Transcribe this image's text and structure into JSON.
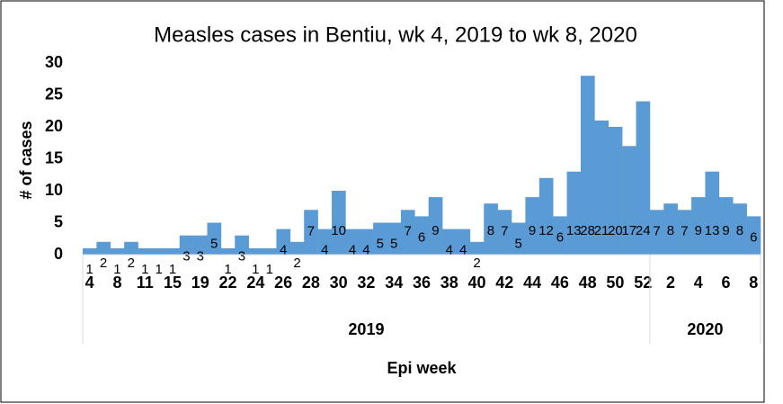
{
  "chart_data": {
    "type": "bar",
    "title": "Measles cases in Bentiu, wk 4, 2019 to wk 8, 2020",
    "x_label": "Epi week",
    "y_label": "# of cases",
    "categories": [
      "4",
      null,
      "8",
      null,
      "11",
      null,
      "15",
      null,
      "19",
      null,
      "22",
      null,
      "24",
      null,
      "26",
      null,
      "28",
      null,
      "30",
      null,
      "32",
      null,
      "34",
      null,
      "36",
      null,
      "38",
      null,
      "40",
      null,
      "42",
      null,
      "44",
      null,
      "46",
      null,
      "48",
      null,
      "50",
      null,
      "52",
      null,
      "2",
      null,
      "4",
      null,
      "6",
      null,
      "8"
    ],
    "groups": [
      {
        "label": "2019",
        "count": 41
      },
      {
        "label": "2020",
        "count": 8
      }
    ],
    "values": [
      1,
      2,
      1,
      2,
      1,
      1,
      1,
      3,
      3,
      5,
      1,
      3,
      1,
      1,
      4,
      2,
      7,
      4,
      10,
      4,
      4,
      5,
      5,
      7,
      6,
      9,
      4,
      4,
      2,
      8,
      7,
      5,
      9,
      12,
      6,
      13,
      28,
      21,
      20,
      17,
      24,
      7,
      8,
      7,
      9,
      13,
      9,
      8,
      6
    ],
    "color": "#5b9bd5",
    "ylim": [
      0,
      30
    ],
    "yticks": [
      0,
      5,
      10,
      15,
      20,
      25,
      30
    ],
    "grid": false
  }
}
